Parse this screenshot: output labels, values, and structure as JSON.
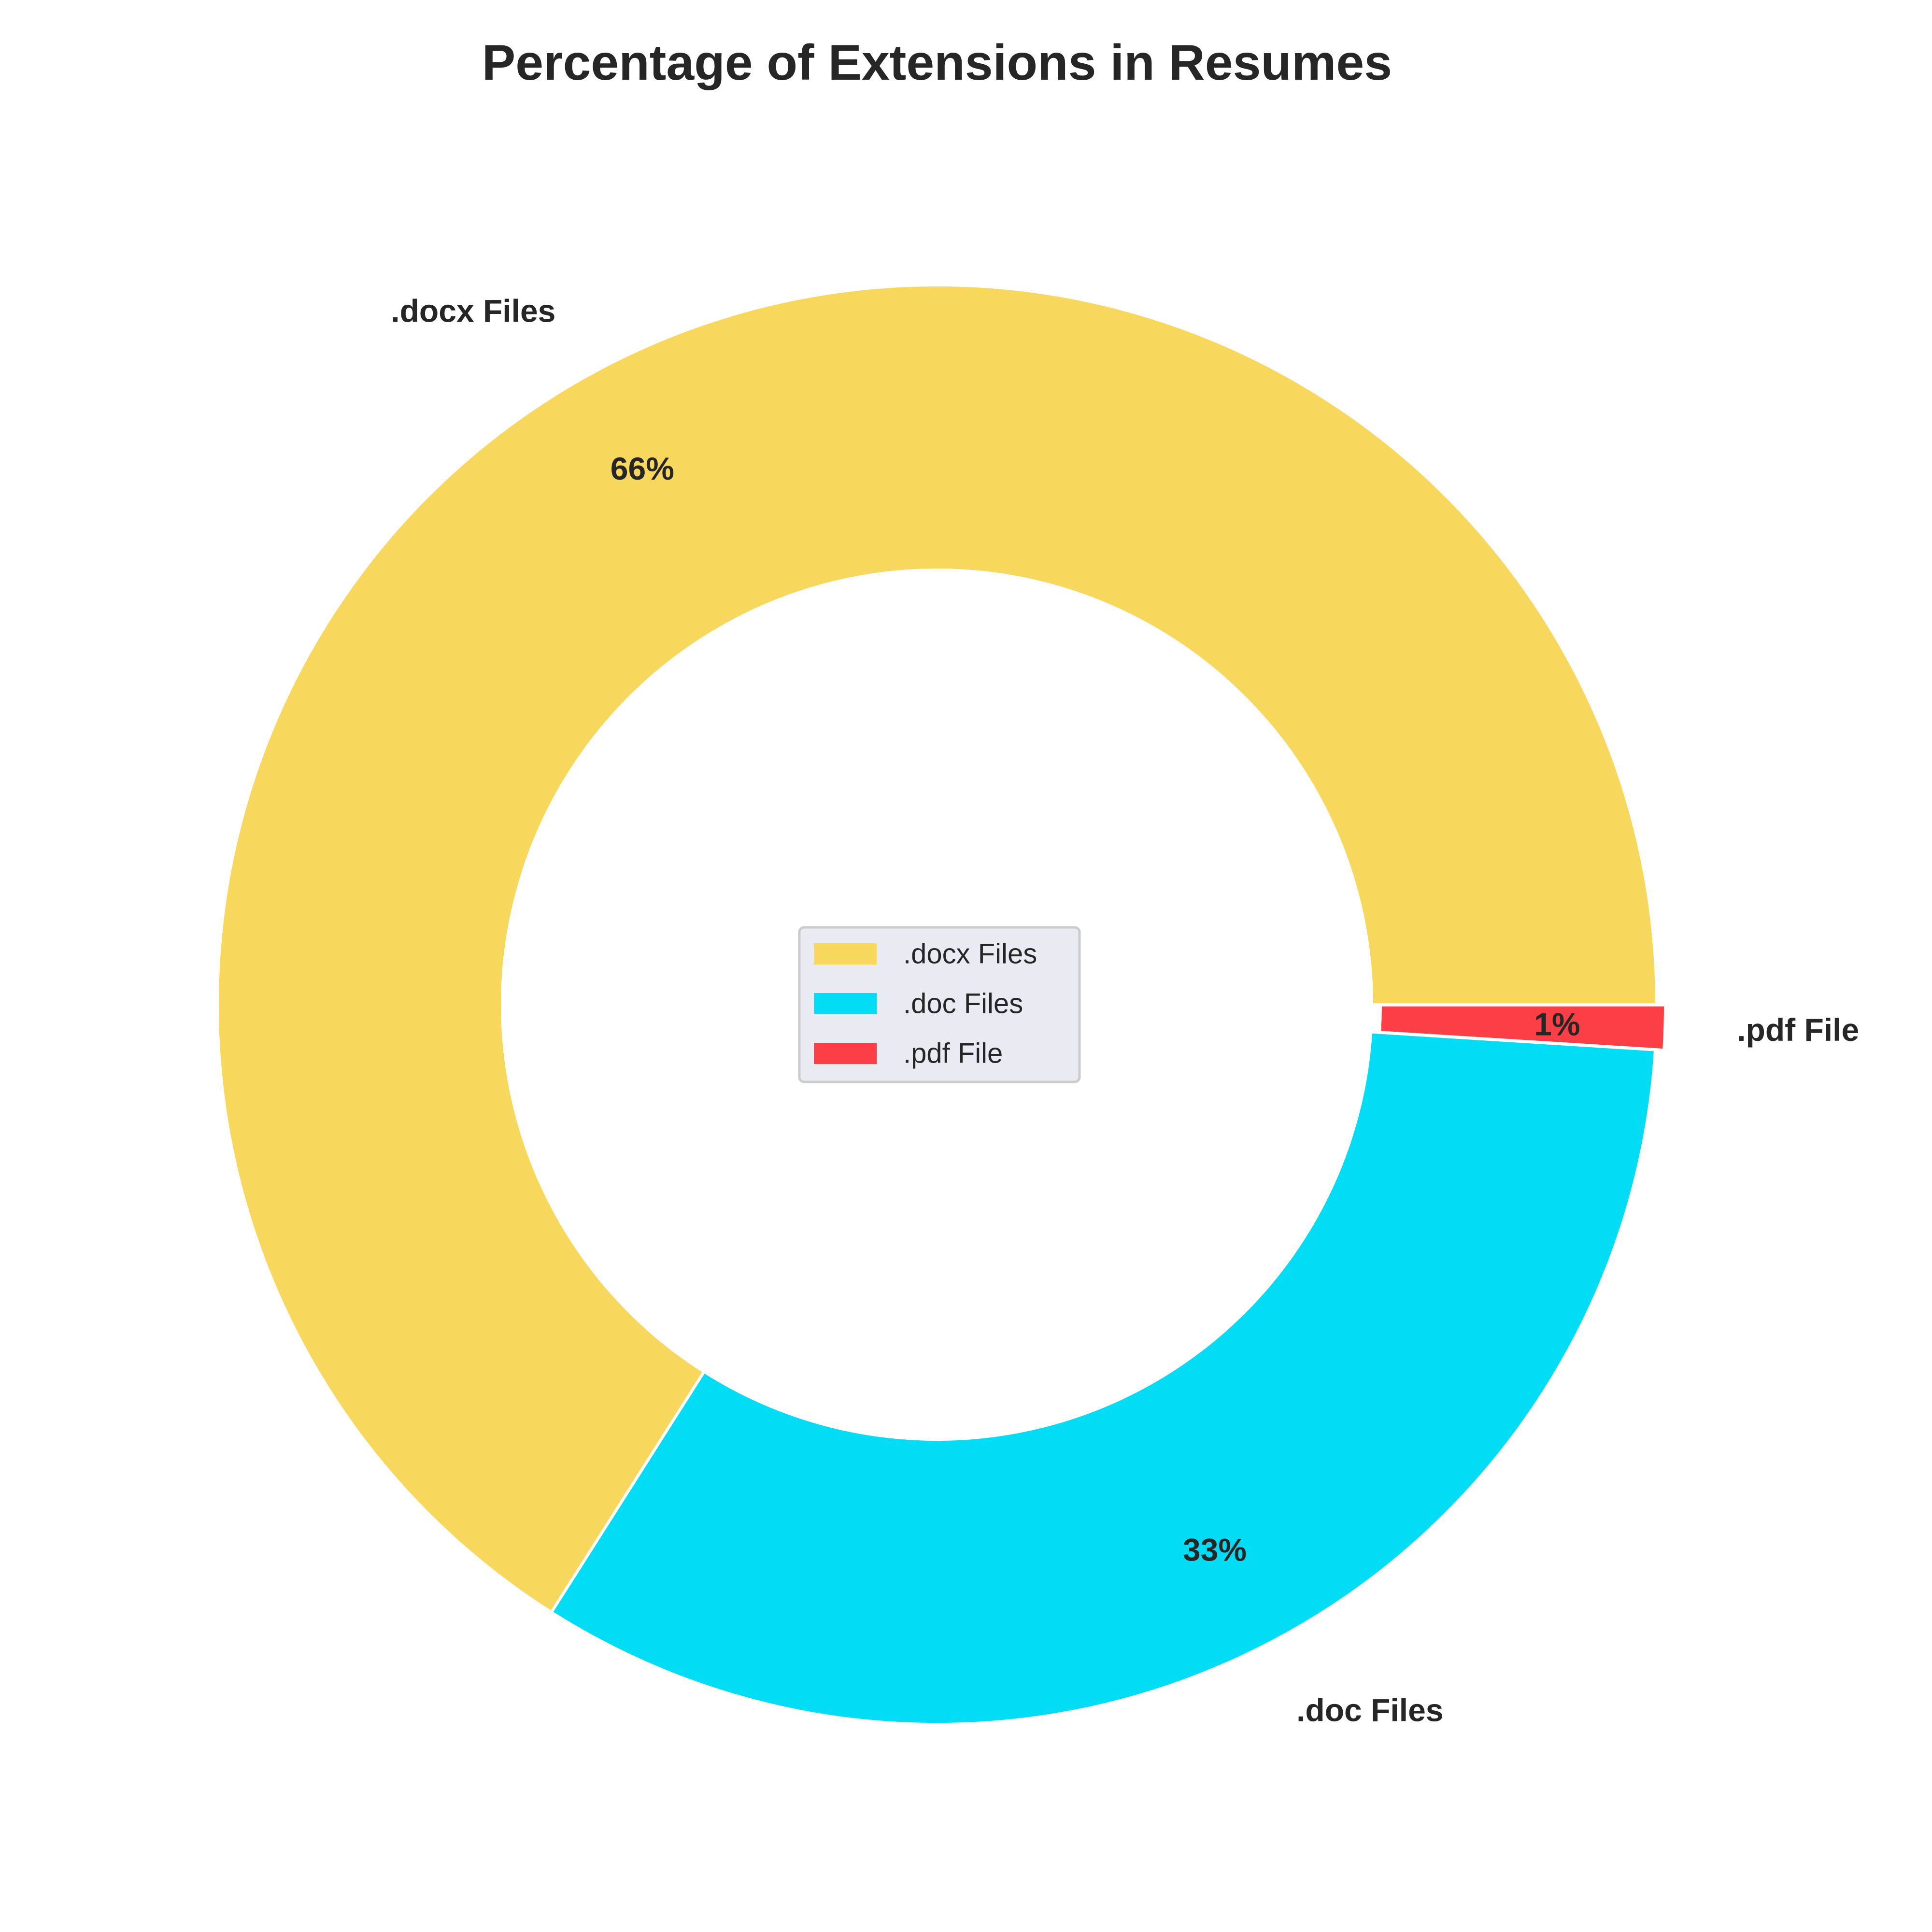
{
  "chart_data": {
    "type": "pie",
    "donut": true,
    "title": "Percentage of Extensions in Resumes",
    "categories": [
      ".docx Files",
      ".doc Files",
      ".pdf File"
    ],
    "values": [
      66,
      33,
      1
    ],
    "value_labels": [
      "66%",
      "33%",
      "1%"
    ],
    "colors": [
      "#f7d75c",
      "#02dcf4",
      "#fc3f46"
    ],
    "exploded": [
      false,
      false,
      true
    ],
    "legend": {
      "placement": "center",
      "entries": [
        ".docx Files",
        ".doc Files",
        ".pdf File"
      ]
    }
  }
}
